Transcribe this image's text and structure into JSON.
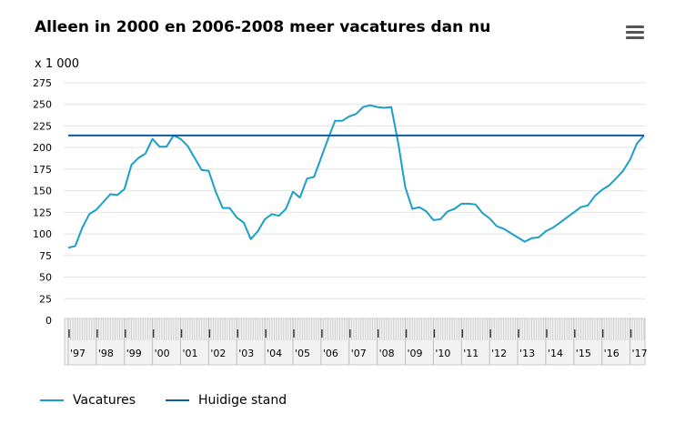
{
  "title": "Alleen in 2000 en 2006-2008 meer vacatures dan nu",
  "menu_icon": "hamburger-menu-icon",
  "chart_data": {
    "type": "line",
    "title": "Alleen in 2000 en 2006-2008 meer vacatures dan nu",
    "unit_label": "x 1 000",
    "ylim": [
      0,
      275
    ],
    "yticks": [
      0,
      25,
      50,
      75,
      100,
      125,
      150,
      175,
      200,
      225,
      250,
      275
    ],
    "ytick_labels": [
      "0",
      "25",
      "50",
      "75",
      "100",
      "125",
      "150",
      "175",
      "200",
      "225",
      "250",
      "275"
    ],
    "xlim": [
      1997,
      2017.5
    ],
    "year_labels": [
      "'97",
      "'98",
      "'99",
      "'00",
      "'01",
      "'02",
      "'03",
      "'04",
      "'05",
      "'06",
      "'07",
      "'08",
      "'09",
      "'10",
      "'11",
      "'12",
      "'13",
      "'14",
      "'15",
      "'16",
      "'17"
    ],
    "grid": true,
    "legend_position": "bottom-left",
    "series": [
      {
        "name": "Vacatures",
        "color": "#1a9fc9",
        "x": [
          1997.0,
          1997.25,
          1997.5,
          1997.75,
          1998.0,
          1998.25,
          1998.5,
          1998.75,
          1999.0,
          1999.25,
          1999.5,
          1999.75,
          2000.0,
          2000.25,
          2000.5,
          2000.75,
          2001.0,
          2001.25,
          2001.5,
          2001.75,
          2002.0,
          2002.25,
          2002.5,
          2002.75,
          2003.0,
          2003.25,
          2003.5,
          2003.75,
          2004.0,
          2004.25,
          2004.5,
          2004.75,
          2005.0,
          2005.25,
          2005.5,
          2005.75,
          2006.0,
          2006.25,
          2006.5,
          2006.75,
          2007.0,
          2007.25,
          2007.5,
          2007.75,
          2008.0,
          2008.25,
          2008.5,
          2008.75,
          2009.0,
          2009.25,
          2009.5,
          2009.75,
          2010.0,
          2010.25,
          2010.5,
          2010.75,
          2011.0,
          2011.25,
          2011.5,
          2011.75,
          2012.0,
          2012.25,
          2012.5,
          2012.75,
          2013.0,
          2013.25,
          2013.5,
          2013.75,
          2014.0,
          2014.25,
          2014.5,
          2014.75,
          2015.0,
          2015.25,
          2015.5,
          2015.75,
          2016.0,
          2016.25,
          2016.5,
          2016.75,
          2017.0,
          2017.25,
          2017.5
        ],
        "values": [
          84,
          86,
          107,
          123,
          128,
          137,
          146,
          145,
          152,
          180,
          188,
          193,
          210,
          201,
          201,
          214,
          210,
          202,
          188,
          174,
          173,
          149,
          130,
          130,
          119,
          113,
          94,
          103,
          117,
          123,
          121,
          129,
          149,
          142,
          164,
          166,
          188,
          210,
          231,
          231,
          236,
          239,
          247,
          249,
          247,
          246,
          247,
          205,
          154,
          129,
          131,
          126,
          116,
          117,
          126,
          129,
          135,
          135,
          134,
          124,
          118,
          109,
          106,
          101,
          96,
          91,
          95,
          96,
          103,
          107,
          113,
          119,
          125,
          131,
          133,
          144,
          151,
          156,
          164,
          173,
          186,
          205,
          214
        ]
      },
      {
        "name": "Huidige stand",
        "color": "#0e5aa7",
        "x": [
          1997.0,
          2017.5
        ],
        "values": [
          214,
          214
        ]
      }
    ]
  },
  "legend": {
    "vacatures": "Vacatures",
    "huidige": "Huidige stand"
  }
}
